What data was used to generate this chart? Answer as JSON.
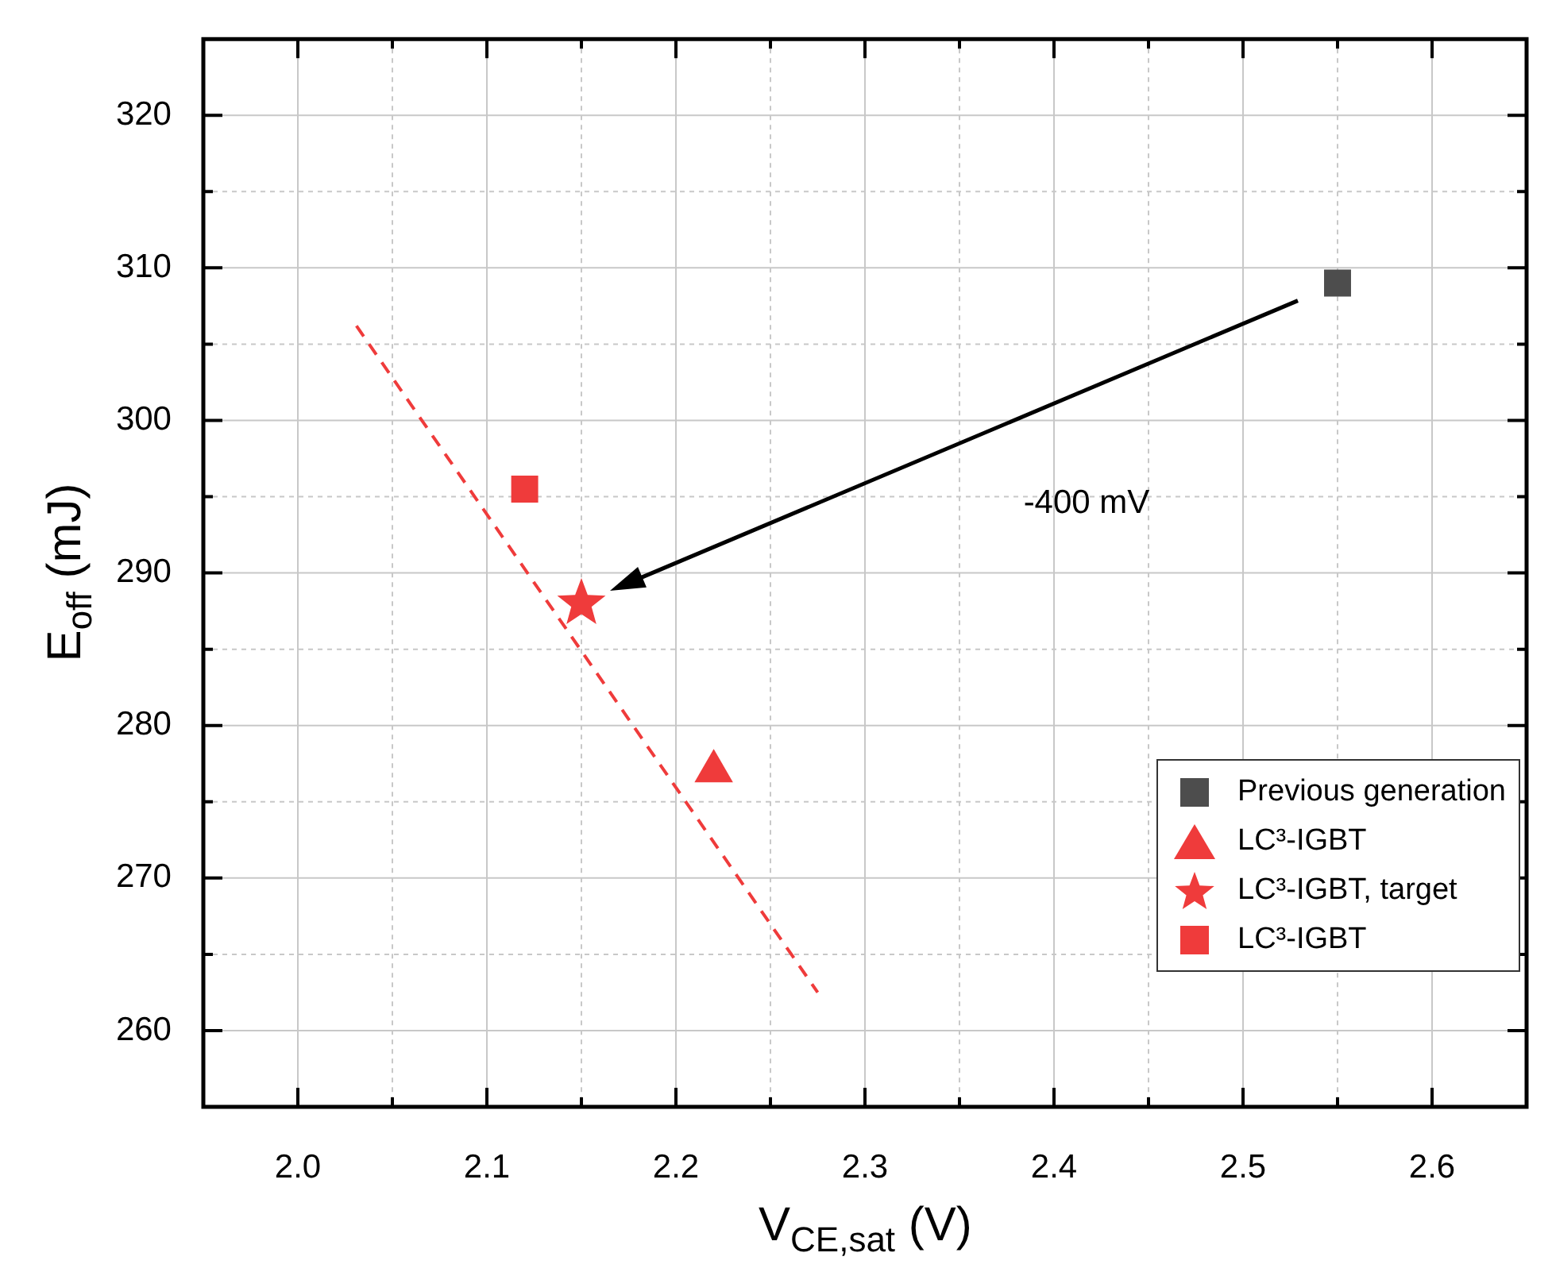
{
  "chart_data": {
    "type": "scatter",
    "xlabel": "V$_{CE,sat}$ (V)",
    "ylabel": "E$_{off}$ (mJ)",
    "xlim": [
      1.95,
      2.65
    ],
    "ylim": [
      255,
      325
    ],
    "xticks": [
      {
        "value": 2,
        "label": "2.0"
      },
      {
        "value": 2.05,
        "label": null
      },
      2.1,
      {
        "value": 2.15,
        "label": null
      },
      2.2,
      {
        "value": 2.25,
        "label": null
      },
      2.3,
      {
        "value": 2.35,
        "label": null
      },
      2.4,
      {
        "value": 2.45,
        "label": null
      },
      2.5,
      {
        "value": 2.55,
        "label": null
      },
      2.6
    ],
    "yticks": [
      260,
      {
        "value": 265,
        "label": null
      },
      270,
      {
        "value": 275,
        "label": null
      },
      280,
      {
        "value": 285,
        "label": null
      },
      290,
      {
        "value": 295,
        "label": null
      },
      300,
      {
        "value": 305,
        "label": null
      },
      310,
      {
        "value": 315,
        "label": null
      },
      320
    ],
    "grid": true,
    "legend": "bottom right",
    "annotations": [
      "-400 mV"
    ],
    "series": [
      {
        "name": "Previous generation",
        "color": "#4d4d4d",
        "marker": "square",
        "x": [
          2.55
        ],
        "values": [
          309
        ]
      },
      {
        "name": "LC³-IGBT",
        "color": "#ef3b3b",
        "marker": "triangle",
        "x": [
          2.22
        ],
        "values": [
          277
        ]
      },
      {
        "name": "LC³-IGBT, target",
        "color": "#ef3b3b",
        "marker": "star",
        "x": [
          2.15
        ],
        "values": [
          288
        ]
      },
      {
        "name": "LC³-IGBT",
        "color": "#ef3b3b",
        "marker": "square",
        "x": [
          2.12
        ],
        "values": [
          295.5
        ]
      },
      {
        "type": "line",
        "color": "#ef3b3b",
        "marker": "none",
        "line_style": "dashed",
        "x": [
          2.031,
          2.275
        ],
        "values": [
          306.2,
          262.5
        ]
      }
    ]
  }
}
